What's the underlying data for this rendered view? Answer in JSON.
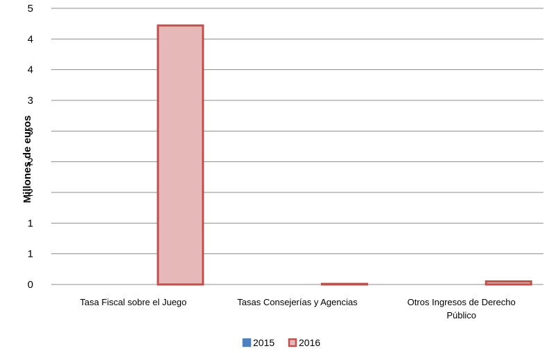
{
  "chart_data": {
    "type": "bar",
    "title": "",
    "xlabel": "",
    "ylabel": "Millones de euros",
    "categories": [
      [
        "Tasa Fiscal sobre el Juego"
      ],
      [
        "Tasas Consejerías y Agencias"
      ],
      [
        "Otros Ingresos de Derecho",
        "Público"
      ]
    ],
    "series": [
      {
        "name": "2015",
        "values": [
          0,
          0,
          0
        ],
        "color": "#4F81BD"
      },
      {
        "name": "2016",
        "values": [
          4.22,
          0.01,
          0.05
        ],
        "color": "#C0504D",
        "fill": "#E6B9B8"
      }
    ],
    "ylim": [
      0,
      4.5
    ],
    "y_ticks": [
      {
        "value": 0,
        "label": "0"
      },
      {
        "value": 0.5,
        "label": "1"
      },
      {
        "value": 1,
        "label": "1"
      },
      {
        "value": 1.5,
        "label": "2"
      },
      {
        "value": 2,
        "label": "2"
      },
      {
        "value": 2.5,
        "label": "3"
      },
      {
        "value": 3,
        "label": "3"
      },
      {
        "value": 3.5,
        "label": "4"
      },
      {
        "value": 4,
        "label": "4"
      },
      {
        "value": 4.5,
        "label": "5"
      }
    ],
    "grid": true,
    "legend_position": "bottom"
  }
}
